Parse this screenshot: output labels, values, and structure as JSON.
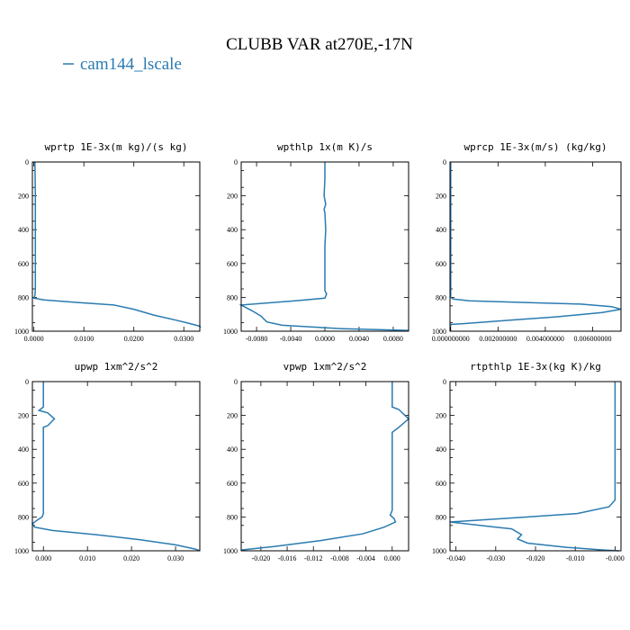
{
  "figure": {
    "title": "CLUBB VAR at270E,-17N",
    "legend_label": "cam144_lscale",
    "series_color": "#2a7bb0"
  },
  "chart_data": [
    {
      "type": "line",
      "title": "wprtp  1E-3x(m kg)/(s kg)",
      "xlim": [
        -0.0003,
        0.0332
      ],
      "ylim": [
        0,
        1000
      ],
      "y_inverted": true,
      "xticks": [
        "0.0000",
        "0.0100",
        "0.0200",
        "0.0300"
      ],
      "xtick_values": [
        0,
        0.01,
        0.02,
        0.03
      ],
      "yticks": [
        0,
        200,
        400,
        600,
        800,
        1000
      ],
      "series": [
        {
          "x": [
            0.0002,
            0.0003,
            0.0003,
            0.0003,
            0.0003,
            0.0002,
            0.0,
            0.002,
            0.0085,
            0.016,
            0.02,
            0.024,
            0.0285,
            0.0312,
            0.0332,
            0.0333
          ],
          "y": [
            0,
            200,
            400,
            600,
            750,
            790,
            805,
            815,
            830,
            845,
            870,
            905,
            935,
            955,
            970,
            980
          ]
        }
      ]
    },
    {
      "type": "line",
      "title": "wpthlp  1x(m K)/s",
      "xlim": [
        -0.0098,
        0.0098
      ],
      "ylim": [
        0,
        1000
      ],
      "y_inverted": true,
      "xticks": [
        "-0.0080",
        "-0.0040",
        "0.0000",
        "0.0040",
        "0.0080"
      ],
      "xtick_values": [
        -0.008,
        -0.004,
        0,
        0.004,
        0.008
      ],
      "yticks": [
        0,
        200,
        400,
        600,
        800,
        1000
      ],
      "series": [
        {
          "x": [
            0.0,
            0.0,
            -0.0001,
            0.0001,
            -0.0001,
            0.0,
            0.0001,
            0.0,
            0.0,
            0.0,
            0.0,
            0.0,
            0.0001,
            0.0002,
            0.0,
            -0.0035,
            -0.0098,
            -0.0085,
            -0.0075,
            -0.0068,
            -0.005,
            0.002,
            0.0098
          ],
          "y": [
            0,
            100,
            200,
            250,
            280,
            300,
            400,
            500,
            600,
            700,
            740,
            760,
            770,
            780,
            805,
            820,
            845,
            880,
            910,
            945,
            965,
            985,
            995
          ]
        }
      ]
    },
    {
      "type": "line",
      "title": "wprcp  1E-3x(m/s) (kg/kg)",
      "xlim": [
        -3e-05,
        0.0072
      ],
      "ylim": [
        0,
        1000
      ],
      "y_inverted": true,
      "xticks": [
        "0.000000000",
        "0.002000000",
        "0.004000000",
        "0.006000000"
      ],
      "xtick_values": [
        0,
        0.002,
        0.004,
        0.006
      ],
      "yticks": [
        0,
        200,
        400,
        600,
        800,
        1000
      ],
      "series": [
        {
          "x": [
            0.0,
            0.0,
            0.0,
            0.0,
            0.0,
            0.0,
            0.0001,
            0.0008,
            0.003,
            0.0055,
            0.0068,
            0.0072,
            0.0064,
            0.0045,
            0.0025,
            0.0006,
            0.0,
            0.0
          ],
          "y": [
            0,
            200,
            400,
            600,
            780,
            800,
            810,
            820,
            830,
            840,
            855,
            870,
            890,
            915,
            935,
            955,
            960,
            970
          ]
        }
      ]
    },
    {
      "type": "line",
      "title": "upwp  1xm^2/s^2",
      "xlim": [
        -0.0025,
        0.0355
      ],
      "ylim": [
        0,
        1000
      ],
      "y_inverted": true,
      "xticks": [
        "0.000",
        "0.010",
        "0.020",
        "0.030"
      ],
      "xtick_values": [
        0,
        0.01,
        0.02,
        0.03
      ],
      "yticks": [
        0,
        200,
        400,
        600,
        800,
        1000
      ],
      "series": [
        {
          "x": [
            0.0,
            0.0,
            0.0,
            0.0,
            -0.001,
            0.001,
            0.0025,
            0.001,
            0.0,
            0.0,
            0.0,
            0.0,
            -0.0003,
            -0.0015,
            -0.0025,
            -0.002,
            0.002,
            0.012,
            0.022,
            0.03,
            0.0345,
            0.0355
          ],
          "y": [
            0,
            100,
            140,
            150,
            170,
            185,
            220,
            260,
            270,
            400,
            600,
            780,
            800,
            820,
            840,
            860,
            880,
            905,
            935,
            965,
            990,
            1000
          ]
        }
      ]
    },
    {
      "type": "line",
      "title": "vpwp  1xm^2/s^2",
      "xlim": [
        -0.023,
        0.0025
      ],
      "ylim": [
        0,
        1000
      ],
      "y_inverted": true,
      "xticks": [
        "-0.020",
        "-0.016",
        "-0.012",
        "-0.008",
        "-0.004",
        "0.000"
      ],
      "xtick_values": [
        -0.02,
        -0.016,
        -0.012,
        -0.008,
        -0.004,
        0
      ],
      "yticks": [
        0,
        200,
        400,
        600,
        800,
        1000
      ],
      "series": [
        {
          "x": [
            0.0,
            0.0,
            0.0,
            0.001,
            0.0025,
            0.001,
            0.0,
            0.0,
            0.0,
            0.0,
            0.0,
            -0.0003,
            0.0003,
            0.0005,
            -0.0012,
            -0.0045,
            -0.011,
            -0.018,
            -0.023
          ],
          "y": [
            0,
            100,
            150,
            165,
            220,
            270,
            300,
            400,
            600,
            700,
            760,
            790,
            810,
            830,
            860,
            900,
            940,
            975,
            995
          ]
        }
      ]
    },
    {
      "type": "line",
      "title": "rtpthlp  1E-3x(kg K)/kg",
      "xlim": [
        -0.0415,
        0.0015
      ],
      "ylim": [
        0,
        1000
      ],
      "y_inverted": true,
      "xticks": [
        "-0.040",
        "-0.030",
        "-0.020",
        "-0.010",
        "-0.000"
      ],
      "xtick_values": [
        -0.04,
        -0.03,
        -0.02,
        -0.01,
        0
      ],
      "yticks": [
        0,
        200,
        400,
        600,
        800,
        1000
      ],
      "series": [
        {
          "x": [
            0.0,
            0.0,
            0.0,
            0.0,
            -0.0015,
            -0.0095,
            -0.022,
            -0.0415,
            -0.03,
            -0.026,
            -0.0235,
            -0.0245,
            -0.022,
            -0.012,
            -0.003,
            0.001
          ],
          "y": [
            0,
            200,
            400,
            700,
            740,
            780,
            800,
            830,
            860,
            870,
            905,
            930,
            955,
            980,
            995,
            1000
          ]
        }
      ]
    }
  ]
}
